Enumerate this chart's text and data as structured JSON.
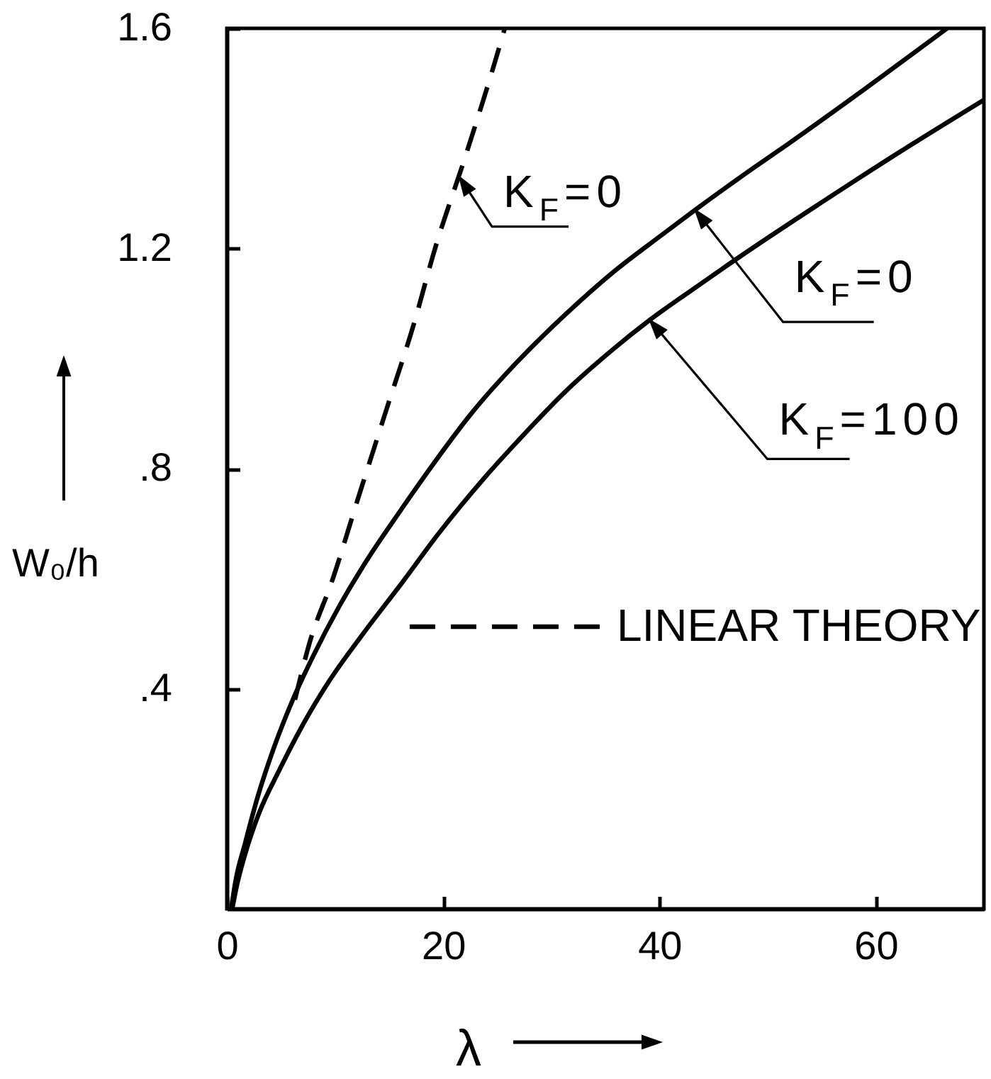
{
  "chart_data": {
    "type": "line",
    "xlabel": "λ",
    "ylabel": "W₀/h",
    "xlim": [
      0,
      70
    ],
    "xticks": [
      0,
      20,
      40,
      60
    ],
    "ylim": [
      0,
      1.6
    ],
    "yticks": [
      {
        "value": 0.4,
        "label": ".4"
      },
      {
        "value": 0.8,
        "label": ".8"
      },
      1.2,
      1.6
    ],
    "legend": "right",
    "series": [
      {
        "name": "LINEAR THEORY",
        "line_style": "dashed",
        "color": "#000000",
        "x": [
          6.3,
          7.6,
          9.8,
          12.2,
          14.8,
          17.4,
          19.1,
          22.1,
          24.5,
          25.7
        ],
        "values": [
          0.38,
          0.48,
          0.6,
          0.75,
          0.91,
          1.07,
          1.19,
          1.37,
          1.52,
          1.6
        ]
      },
      {
        "line_style": "solid",
        "color": "#000000",
        "x": [
          0.4,
          0.8,
          1.7,
          2.8,
          4.3,
          6.1,
          8,
          10.4,
          13,
          16.1,
          18.6,
          22.6,
          26.9,
          31.3,
          35.6,
          39.9,
          43.3,
          48.6,
          51.9,
          59,
          66.6
        ],
        "values": [
          0,
          0.05,
          0.12,
          0.2,
          0.29,
          0.38,
          0.46,
          0.55,
          0.635,
          0.725,
          0.795,
          0.9,
          0.995,
          1.08,
          1.155,
          1.22,
          1.27,
          1.345,
          1.39,
          1.49,
          1.6
        ]
      },
      {
        "line_style": "solid",
        "color": "#000000",
        "x": [
          0.5,
          0.9,
          1.7,
          3,
          4.8,
          6.9,
          9.5,
          12.6,
          16.1,
          19.5,
          23.9,
          26.9,
          31.3,
          35.6,
          39.1,
          43.4,
          47.8,
          54.7,
          63.4,
          70
        ],
        "values": [
          0,
          0.04,
          0.1,
          0.175,
          0.25,
          0.33,
          0.415,
          0.5,
          0.59,
          0.68,
          0.785,
          0.85,
          0.94,
          1.015,
          1.07,
          1.13,
          1.19,
          1.28,
          1.39,
          1.47
        ]
      }
    ],
    "annotations": [
      {
        "text": "K$_{F}$=0",
        "x": 21.5,
        "y": 1.33
      },
      {
        "text": "K$_{F}$=0",
        "x": 43.3,
        "y": 1.27
      },
      {
        "text": "K$_{F}$=100",
        "x": 39.1,
        "y": 1.07
      }
    ]
  }
}
